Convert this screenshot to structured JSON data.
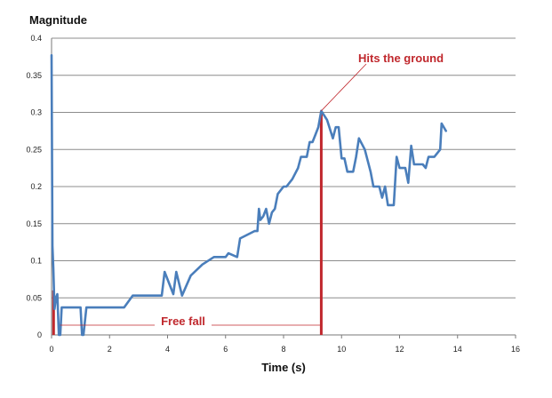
{
  "chart_data": {
    "type": "line",
    "title": "",
    "xlabel": "Time (s)",
    "ylabel": "Magnitude",
    "xlim": [
      0,
      16
    ],
    "ylim": [
      0,
      0.4
    ],
    "x_ticks": [
      0,
      2,
      4,
      6,
      8,
      10,
      12,
      14,
      16
    ],
    "y_ticks": [
      0,
      0.05,
      0.1,
      0.15,
      0.2,
      0.25,
      0.3,
      0.35,
      0.4
    ],
    "y_tick_labels": [
      "0",
      "0.05",
      "0.1",
      "0.15",
      "0.2",
      "0.25",
      "0.3",
      "0.35",
      "0.4"
    ],
    "grid": "horizontal",
    "legend": "none",
    "series": [
      {
        "color": "#4a7ebb",
        "x": [
          0,
          0.03,
          0.06,
          0.1,
          0.15,
          0.2,
          0.25,
          0.3,
          0.35,
          0.5,
          1.0,
          1.05,
          1.1,
          1.2,
          2.5,
          2.8,
          3.8,
          3.9,
          4.2,
          4.3,
          4.5,
          4.8,
          5.2,
          5.6,
          6.0,
          6.1,
          6.4,
          6.5,
          7.0,
          7.1,
          7.15,
          7.2,
          7.3,
          7.4,
          7.5,
          7.6,
          7.7,
          7.8,
          8.0,
          8.1,
          8.3,
          8.5,
          8.6,
          8.8,
          8.9,
          9.0,
          9.1,
          9.2,
          9.3,
          9.5,
          9.7,
          9.8,
          9.9,
          10.0,
          10.1,
          10.2,
          10.4,
          10.5,
          10.6,
          10.8,
          11.0,
          11.1,
          11.2,
          11.3,
          11.4,
          11.5,
          11.6,
          11.7,
          11.8,
          11.9,
          12.0,
          12.05,
          12.2,
          12.3,
          12.4,
          12.5,
          12.8,
          12.9,
          13.0,
          13.2,
          13.3,
          13.4,
          13.45,
          13.6
        ],
        "values": [
          0.377,
          0.12,
          0.09,
          0.035,
          0.05,
          0.055,
          0.0,
          0.0,
          0.037,
          0.037,
          0.037,
          0.0,
          0.0,
          0.037,
          0.037,
          0.053,
          0.053,
          0.085,
          0.055,
          0.085,
          0.053,
          0.08,
          0.095,
          0.105,
          0.105,
          0.11,
          0.105,
          0.13,
          0.14,
          0.14,
          0.17,
          0.155,
          0.16,
          0.17,
          0.15,
          0.165,
          0.17,
          0.19,
          0.2,
          0.2,
          0.21,
          0.225,
          0.24,
          0.24,
          0.26,
          0.26,
          0.27,
          0.28,
          0.302,
          0.29,
          0.265,
          0.28,
          0.28,
          0.238,
          0.238,
          0.22,
          0.22,
          0.24,
          0.265,
          0.25,
          0.22,
          0.2,
          0.2,
          0.2,
          0.185,
          0.2,
          0.175,
          0.175,
          0.175,
          0.24,
          0.225,
          0.225,
          0.225,
          0.205,
          0.255,
          0.23,
          0.23,
          0.225,
          0.24,
          0.24,
          0.245,
          0.25,
          0.285,
          0.275
        ]
      }
    ],
    "annotations": [
      {
        "text": "Hits the ground",
        "x": 9.3,
        "color": "#c0282d"
      },
      {
        "text": "Free fall",
        "color": "#c0282d"
      }
    ],
    "markers": [
      {
        "x": 0.07,
        "y_from": 0,
        "y_to": 0.06,
        "color": "#c0282d"
      },
      {
        "x": 9.3,
        "y_from": 0,
        "y_to": 0.302,
        "color": "#c0282d"
      }
    ]
  }
}
